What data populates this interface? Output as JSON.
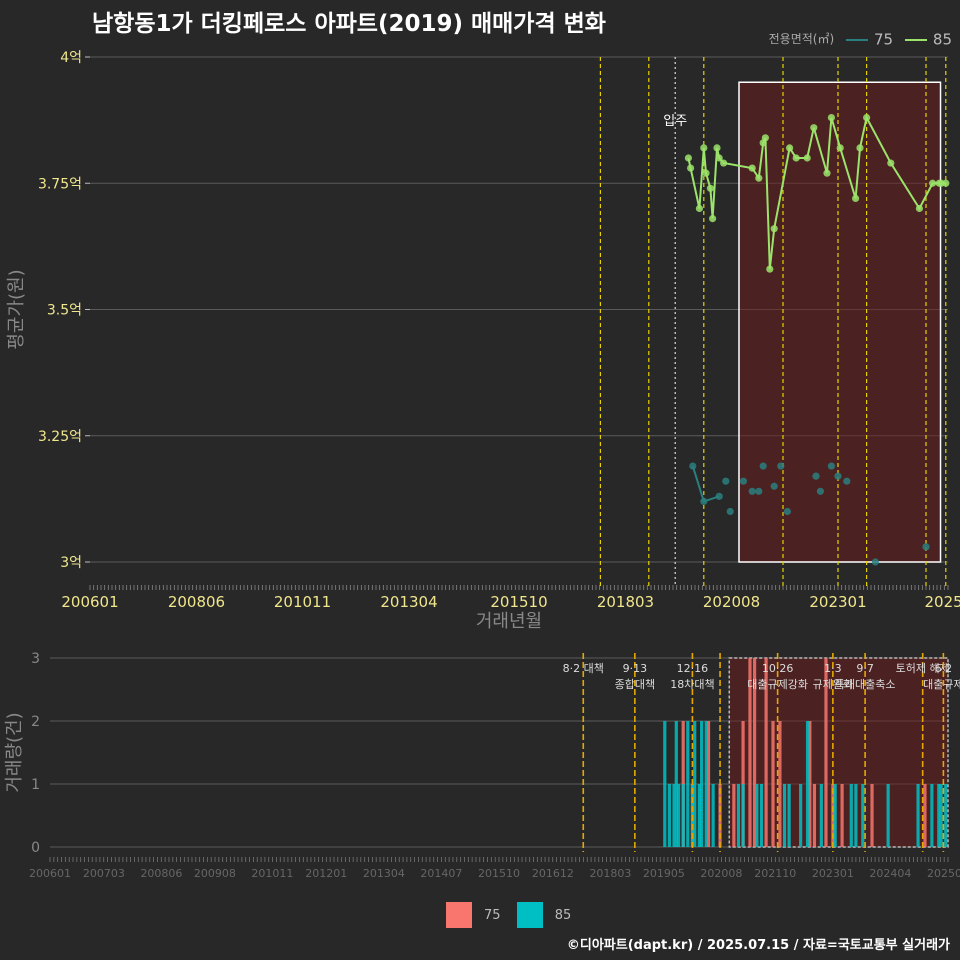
{
  "title": "남항동1가 더킹페로스 아파트(2019) 매매가격 변화",
  "credit": "©디아파트(dapt.kr) / 2025.07.15 / 자료=국토교통부 실거래가",
  "legend_top": {
    "title": "전용면적(㎡)",
    "items": [
      {
        "label": "75",
        "color": "#2a7f7f"
      },
      {
        "label": "85",
        "color": "#9be36a"
      }
    ]
  },
  "legend_bottom": {
    "items": [
      {
        "label": "75",
        "color": "#f8766d"
      },
      {
        "label": "85",
        "color": "#00bfc4"
      }
    ]
  },
  "chart_data": [
    {
      "type": "line",
      "title": "남항동1가 더킹페로스 아파트(2019) 매매가격 변화",
      "xlabel": "거래년월",
      "ylabel": "평균가(원)",
      "ylim": [
        3.0,
        4.0
      ],
      "xlim": [
        2006.0,
        2025.5
      ],
      "y_ticks": [
        "3억",
        "3.25억",
        "3.5억",
        "3.75억",
        "4억"
      ],
      "y_tick_values": [
        3.0,
        3.25,
        3.5,
        3.75,
        4.0
      ],
      "x_ticks": [
        "200601",
        "200806",
        "201011",
        "201304",
        "201510",
        "201803",
        "202008",
        "202301",
        "2025"
      ],
      "x_tick_values": [
        2006.0,
        2008.42,
        2010.83,
        2013.25,
        2015.75,
        2018.17,
        2020.58,
        2023.0,
        2025.4
      ],
      "unit": "억",
      "shaded_region": [
        2020.75,
        2025.33
      ],
      "annotation": {
        "text": "입주",
        "x": 2019.3
      },
      "policy_lines": [
        2017.6,
        2018.7,
        2019.95,
        2021.75,
        2023.0,
        2023.65,
        2025.0,
        2025.45
      ],
      "series": [
        {
          "name": "75",
          "color": "#2a7f7f",
          "points": [
            [
              2019.7,
              3.19
            ],
            [
              2019.95,
              3.12
            ],
            [
              2020.3,
              3.13
            ],
            [
              2020.45,
              3.16
            ],
            [
              2020.55,
              3.1
            ],
            [
              2020.85,
              3.16
            ],
            [
              2021.05,
              3.14
            ],
            [
              2021.2,
              3.14
            ],
            [
              2021.3,
              3.19
            ],
            [
              2021.55,
              3.15
            ],
            [
              2021.7,
              3.19
            ],
            [
              2021.85,
              3.1
            ],
            [
              2022.5,
              3.17
            ],
            [
              2022.6,
              3.14
            ],
            [
              2022.85,
              3.19
            ],
            [
              2023.0,
              3.17
            ],
            [
              2023.2,
              3.16
            ],
            [
              2023.85,
              3.0
            ],
            [
              2025.0,
              3.03
            ]
          ],
          "line": [
            [
              2019.7,
              3.19
            ],
            [
              2019.95,
              3.12
            ],
            [
              2020.3,
              3.13
            ]
          ]
        },
        {
          "name": "85",
          "color": "#9be36a",
          "points": [
            [
              2019.6,
              3.8
            ],
            [
              2019.65,
              3.78
            ],
            [
              2019.85,
              3.7
            ],
            [
              2019.95,
              3.82
            ],
            [
              2020.0,
              3.77
            ],
            [
              2020.1,
              3.74
            ],
            [
              2020.15,
              3.68
            ],
            [
              2020.25,
              3.82
            ],
            [
              2020.3,
              3.8
            ],
            [
              2020.4,
              3.79
            ],
            [
              2021.05,
              3.78
            ],
            [
              2021.2,
              3.76
            ],
            [
              2021.3,
              3.83
            ],
            [
              2021.35,
              3.84
            ],
            [
              2021.45,
              3.58
            ],
            [
              2021.55,
              3.66
            ],
            [
              2021.9,
              3.82
            ],
            [
              2022.05,
              3.8
            ],
            [
              2022.3,
              3.8
            ],
            [
              2022.45,
              3.86
            ],
            [
              2022.75,
              3.77
            ],
            [
              2022.85,
              3.88
            ],
            [
              2023.05,
              3.82
            ],
            [
              2023.4,
              3.72
            ],
            [
              2023.5,
              3.82
            ],
            [
              2023.65,
              3.88
            ],
            [
              2024.2,
              3.79
            ],
            [
              2024.85,
              3.7
            ],
            [
              2025.15,
              3.75
            ],
            [
              2025.3,
              3.75
            ],
            [
              2025.35,
              3.75
            ],
            [
              2025.45,
              3.75
            ]
          ]
        }
      ]
    },
    {
      "type": "bar",
      "ylabel": "거래량(건)",
      "ylim": [
        0,
        3
      ],
      "y_ticks": [
        "0",
        "1",
        "2",
        "3"
      ],
      "x_ticks": [
        "200601",
        "200703",
        "200806",
        "200908",
        "201011",
        "201201",
        "201304",
        "201407",
        "201510",
        "201612",
        "201803",
        "201905",
        "202008",
        "202110",
        "202301",
        "202404",
        "202507"
      ],
      "x_tick_values": [
        2006.0,
        2007.17,
        2008.42,
        2009.58,
        2010.83,
        2012.0,
        2013.25,
        2014.5,
        2015.75,
        2016.92,
        2018.17,
        2019.33,
        2020.58,
        2021.75,
        2023.0,
        2024.25,
        2025.5
      ],
      "xlim": [
        2006.0,
        2025.5
      ],
      "shaded_region": [
        2020.75,
        2025.5
      ],
      "policy_lines": [
        {
          "x": 2017.58,
          "labels": [
            "8·2 대책"
          ]
        },
        {
          "x": 2018.7,
          "labels": [
            "9·13",
            "종합대책"
          ]
        },
        {
          "x": 2019.95,
          "labels": [
            "12·16",
            "18차대책"
          ]
        },
        {
          "x": 2020.55,
          "labels": []
        },
        {
          "x": 2021.8,
          "labels": [
            "10·26",
            "대출규제강화"
          ]
        },
        {
          "x": 2023.0,
          "labels": [
            "1·3",
            "규제완화"
          ]
        },
        {
          "x": 2023.7,
          "labels": [
            "9·7",
            "특례대출축소"
          ]
        },
        {
          "x": 2024.95,
          "labels": [
            "토허제 해제"
          ]
        },
        {
          "x": 2025.4,
          "labels": [
            "6·2",
            "대출규제"
          ]
        }
      ],
      "series": [
        {
          "name": "75",
          "color": "#f8766d",
          "bars": [
            [
              2019.75,
              2
            ],
            [
              2019.95,
              1
            ],
            [
              2020.3,
              2
            ],
            [
              2020.55,
              1
            ],
            [
              2020.85,
              1
            ],
            [
              2021.05,
              2
            ],
            [
              2021.2,
              3
            ],
            [
              2021.3,
              3
            ],
            [
              2021.55,
              3
            ],
            [
              2021.7,
              2
            ],
            [
              2021.85,
              2
            ],
            [
              2022.5,
              2
            ],
            [
              2022.6,
              1
            ],
            [
              2022.85,
              3
            ],
            [
              2023.0,
              1
            ],
            [
              2023.2,
              1
            ],
            [
              2023.85,
              1
            ],
            [
              2025.0,
              1
            ]
          ]
        },
        {
          "name": "85",
          "color": "#00bfc4",
          "bars": [
            [
              2019.35,
              2
            ],
            [
              2019.45,
              1
            ],
            [
              2019.55,
              1
            ],
            [
              2019.6,
              2
            ],
            [
              2019.65,
              1
            ],
            [
              2019.75,
              1
            ],
            [
              2019.85,
              2
            ],
            [
              2019.95,
              1
            ],
            [
              2020.0,
              2
            ],
            [
              2020.1,
              1
            ],
            [
              2020.15,
              2
            ],
            [
              2020.25,
              2
            ],
            [
              2020.4,
              1
            ],
            [
              2020.95,
              1
            ],
            [
              2021.05,
              1
            ],
            [
              2021.35,
              1
            ],
            [
              2021.45,
              1
            ],
            [
              2021.95,
              1
            ],
            [
              2022.05,
              1
            ],
            [
              2022.3,
              1
            ],
            [
              2022.45,
              2
            ],
            [
              2022.75,
              1
            ],
            [
              2023.05,
              1
            ],
            [
              2023.4,
              1
            ],
            [
              2023.5,
              1
            ],
            [
              2023.65,
              1
            ],
            [
              2024.2,
              1
            ],
            [
              2024.85,
              1
            ],
            [
              2025.15,
              1
            ],
            [
              2025.3,
              1
            ],
            [
              2025.35,
              1
            ],
            [
              2025.45,
              1
            ]
          ]
        }
      ]
    }
  ]
}
